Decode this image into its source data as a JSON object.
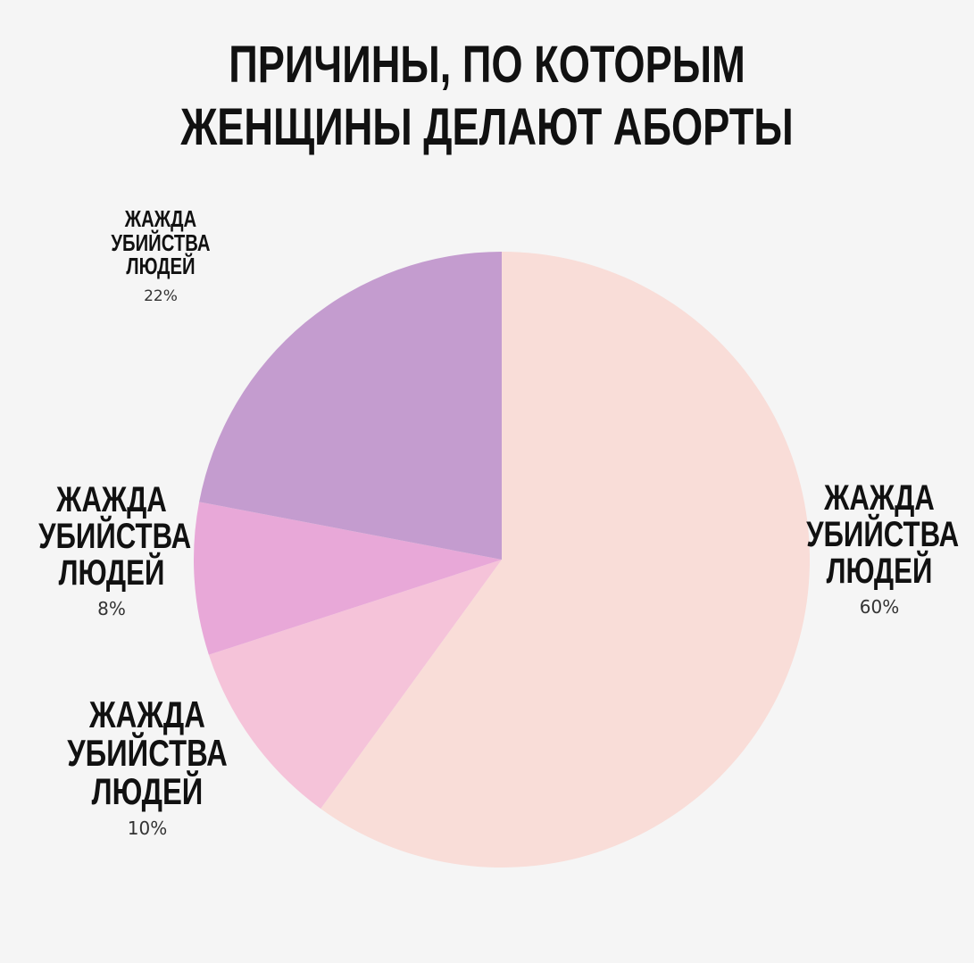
{
  "title": {
    "line1": "ПРИЧИНЫ, ПО КОТОРЫМ",
    "line2": "ЖЕНЩИНЫ ДЕЛАЮТ АБОРТЫ"
  },
  "chart_data": {
    "type": "pie",
    "title": "ПРИЧИНЫ, ПО КОТОРЫМ ЖЕНЩИНЫ ДЕЛАЮТ АБОРТЫ",
    "start": "12 o'clock",
    "direction": "clockwise",
    "slices": [
      {
        "label_lines": [
          "ЖАЖДА",
          "УБИЙСТВА",
          "ЛЮДЕЙ"
        ],
        "value": 60,
        "value_label": "60%",
        "color": "#f9ddd8"
      },
      {
        "label_lines": [
          "ЖАЖДА",
          "УБИЙСТВА",
          "ЛЮДЕЙ"
        ],
        "value": 10,
        "value_label": "10%",
        "color": "#f5c3d9"
      },
      {
        "label_lines": [
          "ЖАЖДА",
          "УБИЙСТВА",
          "ЛЮДЕЙ"
        ],
        "value": 8,
        "value_label": "8%",
        "color": "#e8a8d8"
      },
      {
        "label_lines": [
          "ЖАЖДА",
          "УБИЙСТВА",
          "ЛЮДЕЙ"
        ],
        "value": 22,
        "value_label": "22%",
        "color": "#c49ccf"
      }
    ]
  }
}
